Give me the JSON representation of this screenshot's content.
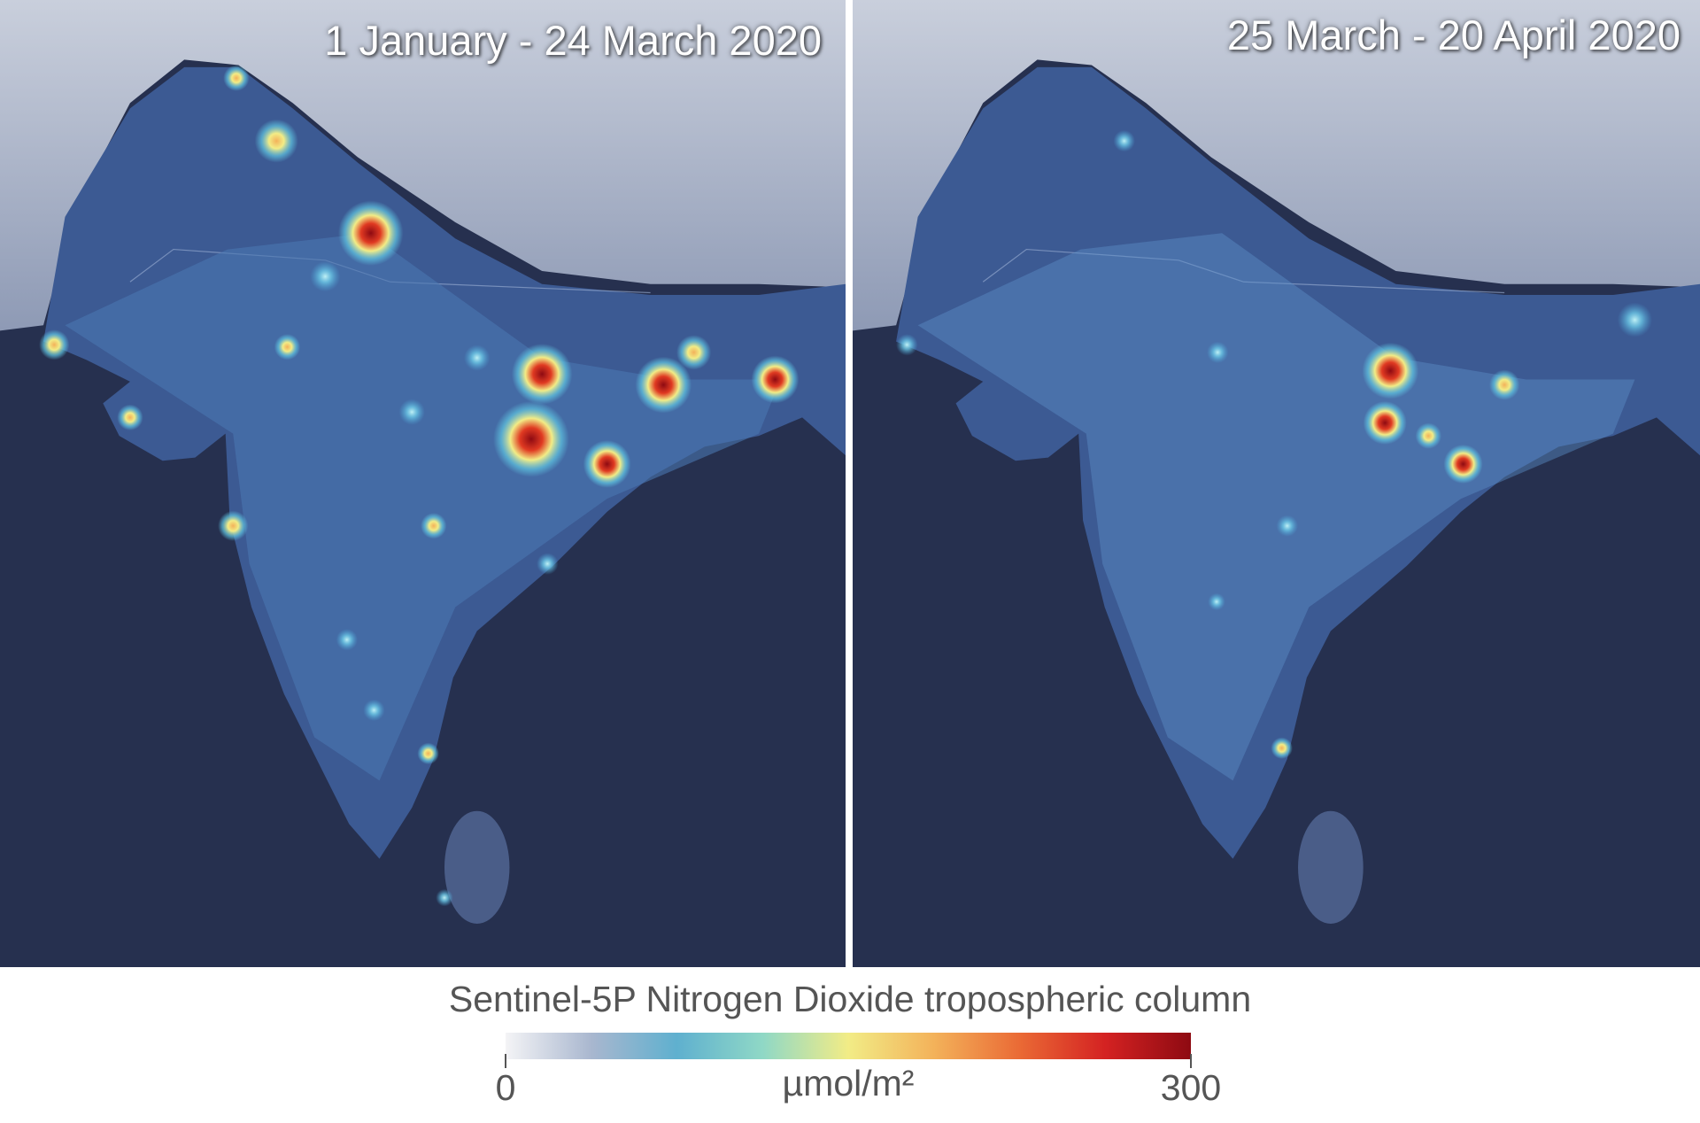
{
  "panels": [
    {
      "title": "1 January - 24 March 2020"
    },
    {
      "title": "25 March - 20 April 2020"
    }
  ],
  "colorbar": {
    "title": "Sentinel-5P Nitrogen Dioxide tropospheric column",
    "unit": "µmol/m²",
    "lim": [
      0,
      300
    ],
    "ticks": [
      0,
      300
    ],
    "colors": [
      "#f4f4f6",
      "#a9b7cf",
      "#5fb0cf",
      "#8fd8c6",
      "#f2ec86",
      "#f3b25a",
      "#ea6a35",
      "#d42222",
      "#8e0a12"
    ]
  }
}
